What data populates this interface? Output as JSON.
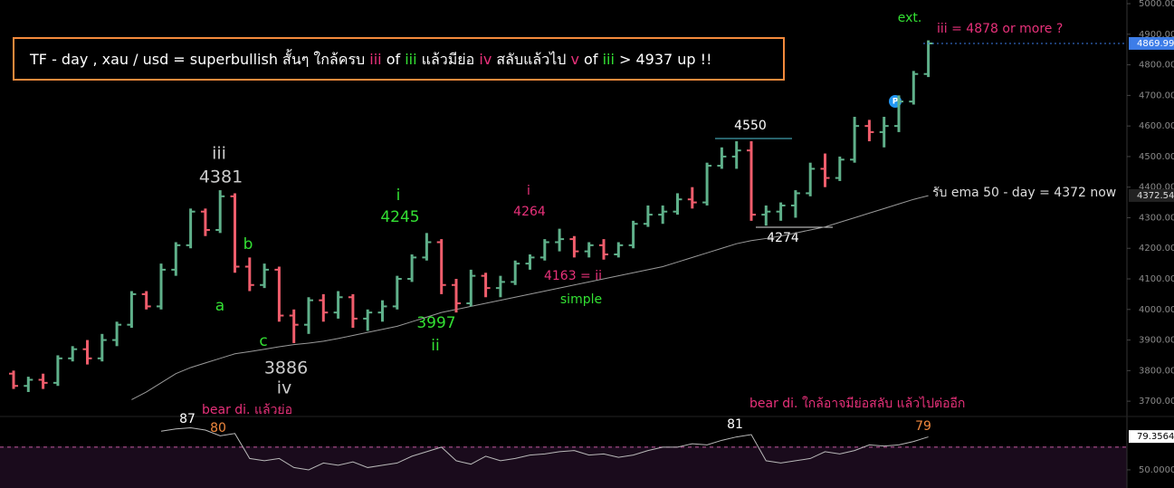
{
  "chart_data": {
    "type": "ohlc",
    "up_color": "#5fb08a",
    "down_color": "#f05d6c",
    "ema_color": "#9a9a9a",
    "rsi_color": "#b8b8b8",
    "grid": false,
    "ylim": [
      3650,
      5012
    ],
    "yticks": [
      {
        "value": 3700,
        "label": "3700.00"
      },
      {
        "value": 3800,
        "label": "3800.00"
      },
      {
        "value": 3900,
        "label": "3900.00"
      },
      {
        "value": 4000,
        "label": "4000.00"
      },
      {
        "value": 4100,
        "label": "4100.00"
      },
      {
        "value": 4200,
        "label": "4200.00"
      },
      {
        "value": 4300,
        "label": "4300.00"
      },
      {
        "value": 4400,
        "label": "4400.00"
      },
      {
        "value": 4500,
        "label": "4500.00"
      },
      {
        "value": 4600,
        "label": "4600.00"
      },
      {
        "value": 4700,
        "label": "4700.00"
      },
      {
        "value": 4800,
        "label": "4800.00"
      },
      {
        "value": 4900,
        "label": "4900.00"
      },
      {
        "value": 5000,
        "label": "5000.00"
      }
    ],
    "open": [
      3790,
      3750,
      3770,
      3760,
      3840,
      3870,
      3840,
      3900,
      3950,
      4050,
      4010,
      4130,
      4210,
      4320,
      4260,
      4370,
      4140,
      4080,
      4130,
      3980,
      3950,
      4030,
      3990,
      4040,
      3970,
      3990,
      4010,
      4100,
      4170,
      4220,
      4080,
      4020,
      4110,
      4070,
      4090,
      4150,
      4170,
      4220,
      4230,
      4190,
      4210,
      4180,
      4210,
      4280,
      4310,
      4320,
      4360,
      4350,
      4470,
      4500,
      4520,
      4310,
      4320,
      4340,
      4380,
      4460,
      4430,
      4490,
      4600,
      4580,
      4600,
      4680,
      4770
    ],
    "high": [
      3800,
      3780,
      3790,
      3850,
      3880,
      3900,
      3920,
      3960,
      4060,
      4060,
      4150,
      4220,
      4330,
      4330,
      4390,
      4380,
      4170,
      4150,
      4140,
      4000,
      4040,
      4050,
      4060,
      4050,
      4000,
      4030,
      4110,
      4180,
      4250,
      4230,
      4100,
      4130,
      4120,
      4110,
      4160,
      4180,
      4230,
      4264,
      4240,
      4220,
      4230,
      4220,
      4290,
      4340,
      4340,
      4380,
      4400,
      4480,
      4530,
      4550,
      4550,
      4340,
      4350,
      4390,
      4480,
      4510,
      4500,
      4630,
      4620,
      4630,
      4700,
      4780,
      4880
    ],
    "low": [
      3740,
      3730,
      3740,
      3750,
      3830,
      3820,
      3830,
      3880,
      3940,
      4000,
      4000,
      4110,
      4200,
      4240,
      4250,
      4120,
      4060,
      4070,
      3960,
      3890,
      3920,
      3960,
      3970,
      3940,
      3930,
      3960,
      4000,
      4090,
      4160,
      4050,
      3990,
      4010,
      4040,
      4040,
      4080,
      4130,
      4160,
      4190,
      4170,
      4170,
      4163,
      4170,
      4200,
      4270,
      4280,
      4310,
      4330,
      4340,
      4460,
      4460,
      4290,
      4274,
      4290,
      4300,
      4370,
      4400,
      4420,
      4480,
      4550,
      4530,
      4580,
      4670,
      4760
    ],
    "close": [
      3750,
      3770,
      3760,
      3840,
      3870,
      3840,
      3900,
      3950,
      4050,
      4010,
      4130,
      4210,
      4320,
      4260,
      4370,
      4140,
      4080,
      4130,
      3980,
      3950,
      4030,
      3990,
      4040,
      3970,
      3990,
      4010,
      4100,
      4170,
      4220,
      4080,
      4020,
      4110,
      4070,
      4090,
      4150,
      4170,
      4220,
      4230,
      4190,
      4210,
      4180,
      4210,
      4280,
      4310,
      4320,
      4360,
      4350,
      4470,
      4500,
      4520,
      4310,
      4320,
      4340,
      4380,
      4460,
      4430,
      4490,
      4600,
      4580,
      4600,
      4680,
      4770,
      4870
    ],
    "ema": [
      null,
      null,
      null,
      null,
      null,
      null,
      null,
      null,
      3705,
      3730,
      3760,
      3790,
      3810,
      3825,
      3840,
      3855,
      3862,
      3870,
      3878,
      3885,
      3890,
      3896,
      3905,
      3915,
      3925,
      3935,
      3945,
      3960,
      3975,
      3990,
      4000,
      4010,
      4020,
      4030,
      4040,
      4050,
      4060,
      4070,
      4080,
      4090,
      4100,
      4110,
      4120,
      4130,
      4140,
      4155,
      4170,
      4185,
      4200,
      4215,
      4225,
      4232,
      4240,
      4250,
      4260,
      4270,
      4285,
      4300,
      4315,
      4330,
      4345,
      4360,
      4372
    ],
    "price_current": {
      "value": 4869.99,
      "label": "4869.99"
    },
    "ema_current": {
      "value": 4372.54,
      "label": "4372.54"
    },
    "rsi": [
      null,
      null,
      null,
      null,
      null,
      null,
      null,
      null,
      null,
      null,
      84,
      86,
      87,
      85,
      80,
      82,
      60,
      58,
      60,
      52,
      50,
      56,
      54,
      57,
      52,
      54,
      56,
      62,
      66,
      70,
      58,
      55,
      62,
      58,
      60,
      63,
      64,
      66,
      67,
      63,
      64,
      61,
      63,
      67,
      70,
      70,
      73,
      72,
      76,
      79,
      81,
      58,
      56,
      58,
      60,
      66,
      64,
      67,
      72,
      71,
      72,
      75,
      79
    ],
    "rsi_ylim": [
      34,
      97
    ],
    "rsi_yticks": [
      {
        "value": 50,
        "label": "50.0000"
      }
    ],
    "rsi_level": 70,
    "rsi_current": {
      "value": 79.3564,
      "label": "79.3564"
    },
    "title_segments": [
      {
        "text": "TF - day , xau / usd = superbullish สั้นๆ ใกล้ครบ ",
        "color": "#ffffff"
      },
      {
        "text": "iii",
        "color": "#e8317a"
      },
      {
        "text": " of ",
        "color": "#ffffff"
      },
      {
        "text": "iii",
        "color": "#33e033"
      },
      {
        "text": " แล้วมีย่อ ",
        "color": "#ffffff"
      },
      {
        "text": "iv",
        "color": "#e8317a"
      },
      {
        "text": " สลับแล้วไป ",
        "color": "#ffffff"
      },
      {
        "text": "v",
        "color": "#e8317a"
      },
      {
        "text": " of ",
        "color": "#ffffff"
      },
      {
        "text": "iii",
        "color": "#33e033"
      },
      {
        "text": " > 4937 up !!",
        "color": "#ffffff"
      }
    ],
    "annotations": [
      {
        "text": "iii",
        "color": "#cccccc"
      },
      {
        "text": "4381",
        "color": "#cccccc"
      },
      {
        "text": "a",
        "color": "#33e033"
      },
      {
        "text": "b",
        "color": "#33e033"
      },
      {
        "text": "c",
        "color": "#33e033"
      },
      {
        "text": "3886",
        "color": "#cccccc"
      },
      {
        "text": "iv",
        "color": "#cccccc"
      },
      {
        "text": "i",
        "color": "#33e033"
      },
      {
        "text": "4245",
        "color": "#33e033"
      },
      {
        "text": "3997",
        "color": "#33e033"
      },
      {
        "text": "ii",
        "color": "#33e033"
      },
      {
        "text": "i",
        "color": "#e8317a"
      },
      {
        "text": "4264",
        "color": "#e8317a"
      },
      {
        "text": "4163 = ii",
        "color": "#e8317a"
      },
      {
        "text": "simple",
        "color": "#33e033"
      },
      {
        "text": "4550",
        "color": "#ffffff"
      },
      {
        "text": "4274",
        "color": "#ffffff"
      },
      {
        "text": "ext.",
        "color": "#33e033"
      },
      {
        "text": "iii = 4878 or more ?",
        "color": "#e8317a"
      },
      {
        "text": "รับ ema 50 - day = 4372 now",
        "color": "#dddddd"
      },
      {
        "text": "bear di. แล้วย่อ",
        "color": "#e8317a"
      },
      {
        "text": "87",
        "color": "#ffffff"
      },
      {
        "text": "80",
        "color": "#f0883e"
      },
      {
        "text": "bear di. ใกล้อาจมีย่อสลับ แล้วไปต่ออีก",
        "color": "#e8317a"
      },
      {
        "text": "81",
        "color": "#ffffff"
      },
      {
        "text": "79",
        "color": "#f0883e"
      }
    ],
    "marker": "P"
  }
}
